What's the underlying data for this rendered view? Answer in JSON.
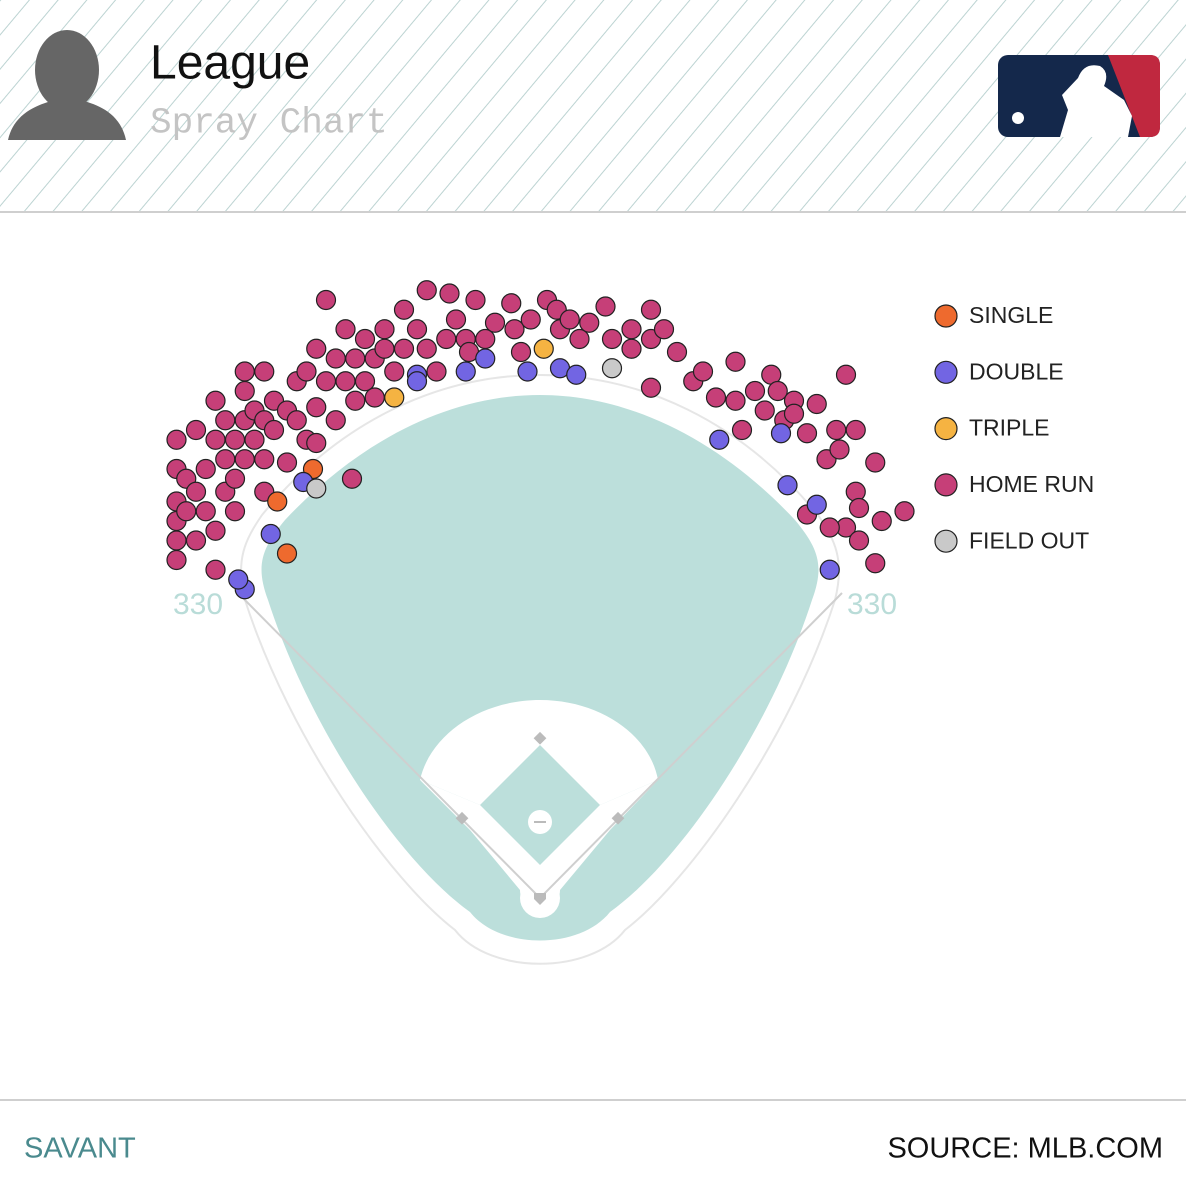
{
  "header": {
    "title": "League",
    "subtitle": "Spray Chart"
  },
  "chart_data": {
    "type": "scatter",
    "xlim": [
      0,
      250
    ],
    "ylim": [
      250,
      0
    ],
    "field_labels": {
      "left": "330",
      "right": "330"
    },
    "series": [
      {
        "name": "SINGLE",
        "color": "#ee6a2e",
        "x": [
          55,
          44,
          47
        ],
        "y": [
          72,
          82,
          98
        ]
      },
      {
        "name": "DOUBLE",
        "color": "#7265e3",
        "x": [
          34,
          32,
          42,
          52,
          87,
          87,
          102,
          108,
          121,
          131,
          136,
          180,
          199,
          201,
          210,
          214
        ],
        "y": [
          109,
          106,
          92,
          76,
          43,
          45,
          42,
          38,
          42,
          41,
          43,
          63,
          61,
          77,
          83,
          103
        ]
      },
      {
        "name": "TRIPLE",
        "color": "#f5b342",
        "x": [
          80,
          126
        ],
        "y": [
          50,
          35
        ]
      },
      {
        "name": "HOME RUN",
        "color": "#c63f78",
        "x": [
          13,
          13,
          13,
          13,
          13,
          13,
          16,
          16,
          19,
          19,
          19,
          22,
          22,
          25,
          25,
          25,
          25,
          28,
          28,
          28,
          31,
          31,
          31,
          34,
          34,
          34,
          34,
          37,
          37,
          40,
          40,
          40,
          40,
          43,
          43,
          47,
          47,
          50,
          50,
          53,
          53,
          56,
          56,
          56,
          59,
          59,
          62,
          62,
          65,
          65,
          67,
          68,
          68,
          71,
          71,
          74,
          74,
          77,
          77,
          80,
          83,
          83,
          87,
          90,
          90,
          93,
          96,
          97,
          99,
          102,
          103,
          105,
          108,
          111,
          116,
          117,
          119,
          122,
          127,
          130,
          131,
          134,
          137,
          140,
          145,
          147,
          153,
          153,
          159,
          159,
          159,
          163,
          167,
          172,
          175,
          179,
          185,
          185,
          187,
          191,
          194,
          196,
          198,
          200,
          203,
          203,
          207,
          210,
          213,
          216,
          219,
          217,
          222,
          222,
          223,
          219,
          223,
          228,
          228,
          230,
          237,
          207,
          214
        ],
        "y": [
          63,
          72,
          82,
          88,
          94,
          100,
          75,
          85,
          60,
          79,
          94,
          72,
          85,
          51,
          63,
          103,
          91,
          57,
          69,
          79,
          63,
          75,
          85,
          48,
          57,
          69,
          42,
          54,
          63,
          57,
          69,
          79,
          42,
          60,
          51,
          54,
          70,
          45,
          57,
          42,
          63,
          35,
          53,
          64,
          20,
          45,
          38,
          57,
          29,
          45,
          75,
          38,
          51,
          32,
          45,
          38,
          50,
          29,
          35,
          42,
          23,
          35,
          29,
          35,
          17,
          42,
          32,
          18,
          26,
          32,
          36,
          20,
          32,
          27,
          21,
          29,
          36,
          26,
          20,
          23,
          29,
          26,
          32,
          27,
          22,
          32,
          29,
          35,
          23,
          32,
          47,
          29,
          36,
          45,
          42,
          50,
          39,
          51,
          60,
          48,
          54,
          43,
          48,
          57,
          51,
          55,
          61,
          52,
          69,
          60,
          43,
          66,
          60,
          79,
          84,
          90,
          94,
          70,
          101,
          88,
          85,
          86,
          90
        ]
      },
      {
        "name": "FIELD OUT",
        "color": "#c9c9c9",
        "x": [
          56,
          147
        ],
        "y": [
          78,
          41
        ]
      }
    ]
  },
  "footer": {
    "left": "SAVANT",
    "right": "SOURCE: MLB.COM"
  }
}
